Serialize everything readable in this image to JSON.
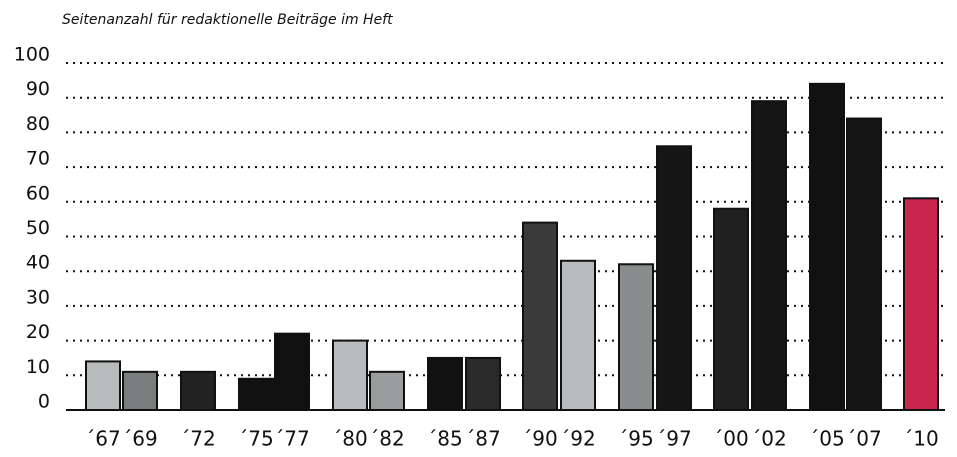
{
  "chart_data": {
    "type": "bar",
    "title": "Seitenanzahl für redaktionelle Beiträge im Heft",
    "categories": [
      "´67",
      "´69",
      "´72",
      "´75",
      "´77",
      "´80",
      "´82",
      "´85",
      "´87",
      "´90",
      "´92",
      "´95",
      "´97",
      "´00",
      "´02",
      "´05",
      "´07",
      "´10"
    ],
    "values": [
      14,
      11,
      11,
      9,
      22,
      20,
      11,
      15,
      15,
      54,
      43,
      42,
      76,
      58,
      89,
      94,
      84,
      61
    ],
    "colors": [
      "#b9bcbc",
      "#7a7d7d",
      "#222222",
      "#111111",
      "#111111",
      "#b9bcbc",
      "#9a9d9d",
      "#111111",
      "#2a2a2a",
      "#3a3a3a",
      "#b9bcbc",
      "#8a8d8d",
      "#151515",
      "#202020",
      "#151515",
      "#111111",
      "#151515",
      "#c8264f"
    ],
    "ylim": [
      0,
      100
    ],
    "yticks": [
      0,
      10,
      20,
      30,
      40,
      50,
      60,
      70,
      80,
      90,
      100
    ],
    "grid": true
  }
}
